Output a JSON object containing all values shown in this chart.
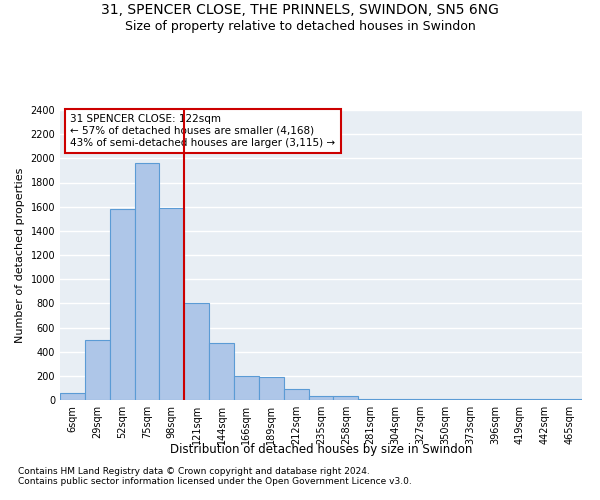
{
  "title": "31, SPENCER CLOSE, THE PRINNELS, SWINDON, SN5 6NG",
  "subtitle": "Size of property relative to detached houses in Swindon",
  "xlabel": "Distribution of detached houses by size in Swindon",
  "ylabel": "Number of detached properties",
  "categories": [
    "6sqm",
    "29sqm",
    "52sqm",
    "75sqm",
    "98sqm",
    "121sqm",
    "144sqm",
    "166sqm",
    "189sqm",
    "212sqm",
    "235sqm",
    "258sqm",
    "281sqm",
    "304sqm",
    "327sqm",
    "350sqm",
    "373sqm",
    "396sqm",
    "419sqm",
    "442sqm",
    "465sqm"
  ],
  "values": [
    55,
    500,
    1580,
    1960,
    1590,
    800,
    475,
    200,
    190,
    90,
    35,
    30,
    10,
    5,
    5,
    5,
    5,
    5,
    5,
    5,
    5
  ],
  "bar_color": "#aec6e8",
  "bar_edge_color": "#5b9bd5",
  "vline_color": "#cc0000",
  "annotation_text": "31 SPENCER CLOSE: 122sqm\n← 57% of detached houses are smaller (4,168)\n43% of semi-detached houses are larger (3,115) →",
  "annotation_box_color": "white",
  "annotation_box_edge_color": "#cc0000",
  "ylim": [
    0,
    2400
  ],
  "yticks": [
    0,
    200,
    400,
    600,
    800,
    1000,
    1200,
    1400,
    1600,
    1800,
    2000,
    2200,
    2400
  ],
  "background_color": "#e8eef4",
  "grid_color": "white",
  "footer1": "Contains HM Land Registry data © Crown copyright and database right 2024.",
  "footer2": "Contains public sector information licensed under the Open Government Licence v3.0.",
  "title_fontsize": 10,
  "subtitle_fontsize": 9,
  "xlabel_fontsize": 8.5,
  "ylabel_fontsize": 8,
  "tick_fontsize": 7,
  "annotation_fontsize": 7.5,
  "footer_fontsize": 6.5
}
